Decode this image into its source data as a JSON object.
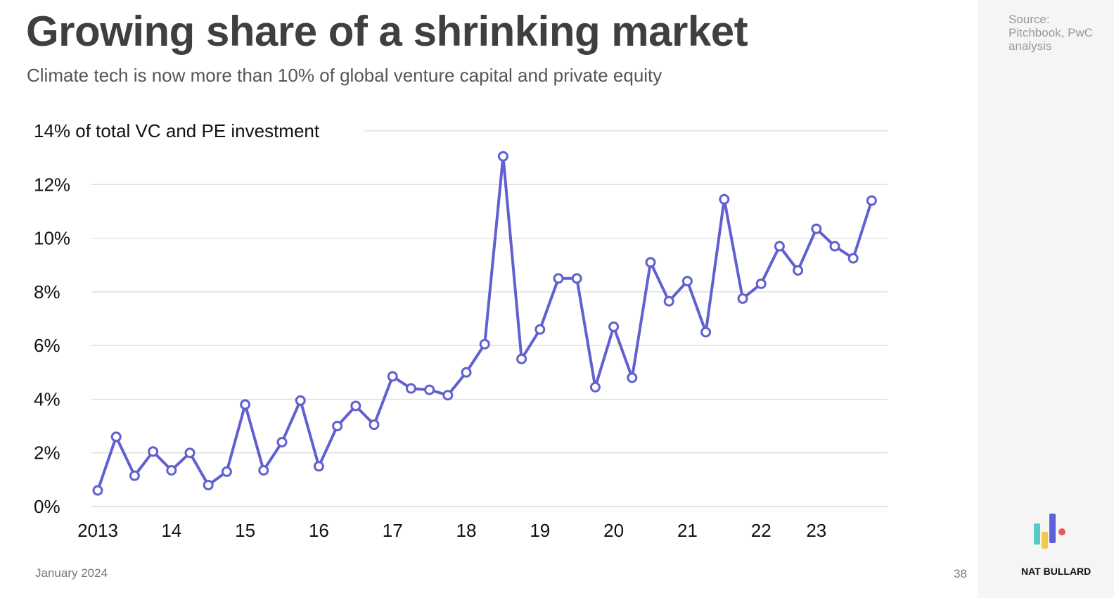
{
  "header": {
    "title": "Growing share of a shrinking market",
    "subtitle": "Climate tech is now more than 10% of global venture capital and private equity"
  },
  "source": "Source: Pitchbook, PwC analysis",
  "footer": {
    "date": "January 2024",
    "page": "38"
  },
  "brand": {
    "name": "NAT BULLARD",
    "colors": [
      "#5bc8c8",
      "#f2c94c",
      "#6060d8",
      "#eb5757"
    ]
  },
  "colors": {
    "line": "#6060d0",
    "grid": "#d9d9d9",
    "marker_fill": "#ffffff"
  },
  "chart_data": {
    "type": "line",
    "title": "",
    "xlabel": "",
    "ylabel": "",
    "ylim": [
      0,
      14
    ],
    "y_ticks": [
      0,
      2,
      4,
      6,
      8,
      10,
      12,
      14
    ],
    "y_tick_labels": [
      "0%",
      "2%",
      "4%",
      "6%",
      "8%",
      "10%",
      "12%",
      "14% of total VC and PE investment"
    ],
    "x_ticks": [
      {
        "label": "2013",
        "x": 2013.0
      },
      {
        "label": "14",
        "x": 2014.0
      },
      {
        "label": "15",
        "x": 2015.0
      },
      {
        "label": "16",
        "x": 2016.0
      },
      {
        "label": "17",
        "x": 2017.0
      },
      {
        "label": "18",
        "x": 2018.0
      },
      {
        "label": "19",
        "x": 2019.0
      },
      {
        "label": "20",
        "x": 2020.0
      },
      {
        "label": "21",
        "x": 2021.0
      },
      {
        "label": "22",
        "x": 2022.0
      },
      {
        "label": "23",
        "x": 2022.75
      }
    ],
    "grid": true,
    "series": [
      {
        "values": [
          0.6,
          2.6,
          1.15,
          2.05,
          1.35,
          2.0,
          0.8,
          1.3,
          3.8,
          1.35,
          2.4,
          3.95,
          1.5,
          3.0,
          3.75,
          3.05,
          4.85,
          4.4,
          4.35,
          4.15,
          5.0,
          6.05,
          13.05,
          5.5,
          6.6,
          8.5,
          8.5,
          4.45,
          6.7,
          4.8,
          9.1,
          7.65,
          8.4,
          6.5,
          11.45,
          7.75,
          8.3,
          9.7,
          8.8,
          10.35,
          9.7,
          9.25,
          11.4
        ]
      }
    ]
  }
}
